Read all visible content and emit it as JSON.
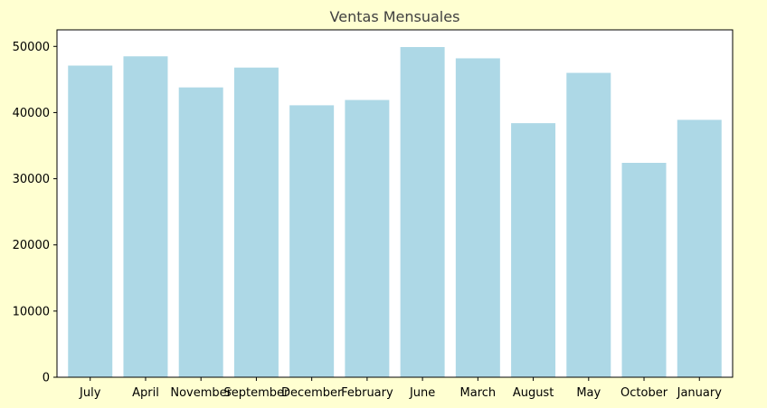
{
  "chart_data": {
    "type": "bar",
    "title": "Ventas Mensuales",
    "xlabel": "",
    "ylabel": "",
    "categories": [
      "July",
      "April",
      "November",
      "September",
      "December",
      "February",
      "June",
      "March",
      "August",
      "May",
      "October",
      "January"
    ],
    "values": [
      47100,
      48500,
      43800,
      46800,
      41100,
      41900,
      49900,
      48200,
      38400,
      46000,
      32400,
      38900
    ],
    "ylim": [
      0,
      52500
    ],
    "yticks": [
      0,
      10000,
      20000,
      30000,
      40000,
      50000
    ],
    "grid": false,
    "legend": "none",
    "colors": {
      "bar": "#add8e6",
      "background": "#ffffd1",
      "plot_background": "#ffffff",
      "axis": "#000000",
      "title": "#404040"
    }
  }
}
